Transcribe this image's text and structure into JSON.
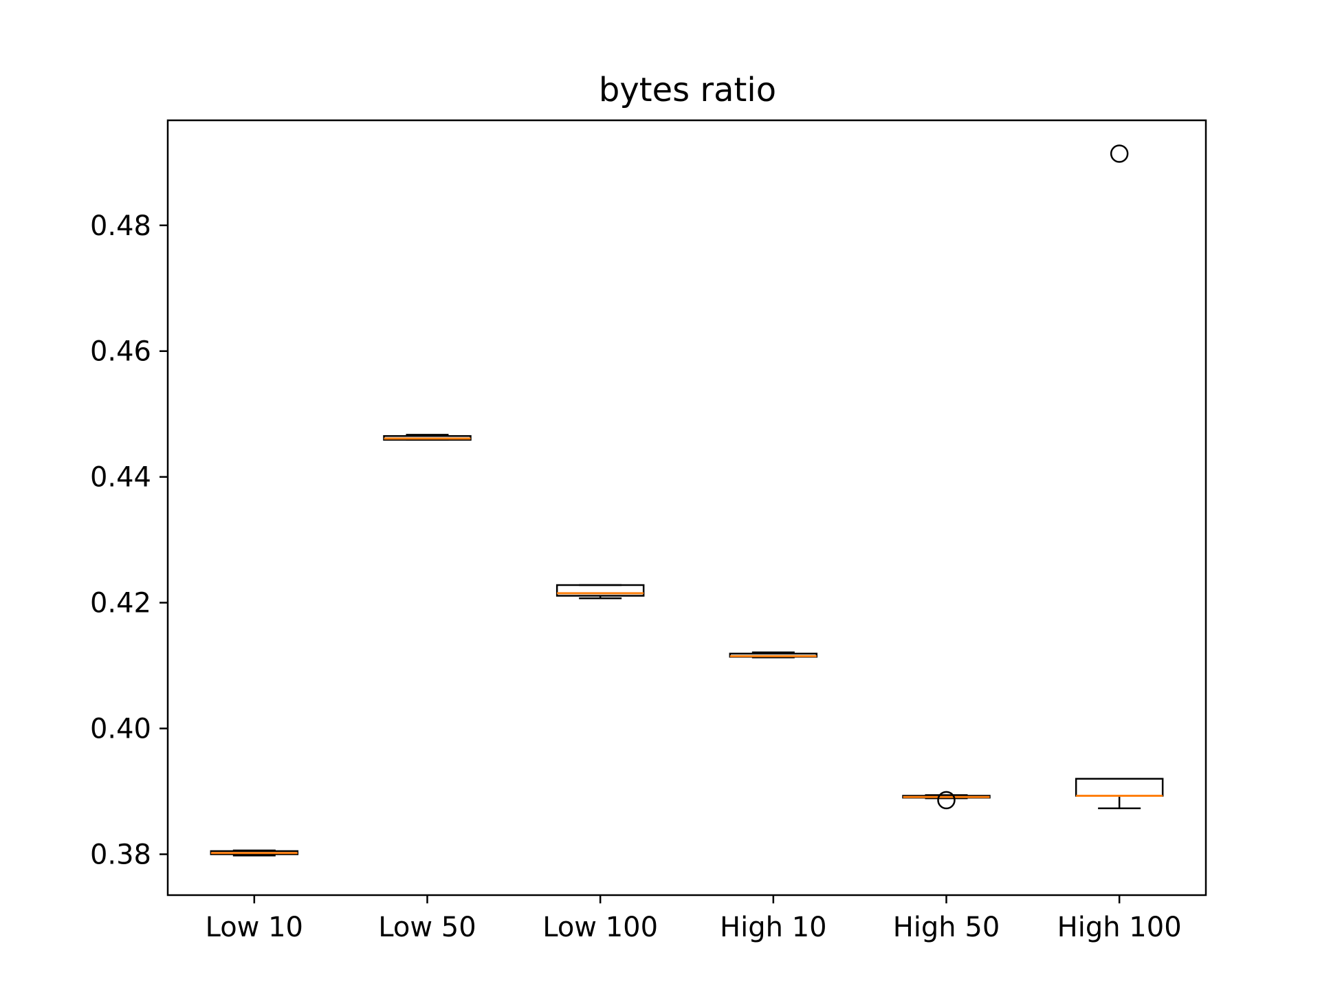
{
  "chart_data": {
    "type": "box",
    "title": "bytes ratio",
    "xlabel": "",
    "ylabel": "",
    "ylim": [
      0.3735,
      0.4967
    ],
    "yticks": [
      0.38,
      0.4,
      0.42,
      0.44,
      0.46,
      0.48
    ],
    "ytick_labels": [
      "0.38",
      "0.40",
      "0.42",
      "0.44",
      "0.46",
      "0.48"
    ],
    "categories": [
      "Low 10",
      "Low 50",
      "Low 100",
      "High 10",
      "High 50",
      "High 100"
    ],
    "boxes": [
      {
        "label": "Low 10",
        "whisker_low": 0.3798,
        "q1": 0.38,
        "median": 0.3802,
        "q3": 0.3805,
        "whisker_high": 0.3806,
        "outliers": []
      },
      {
        "label": "Low 50",
        "whisker_low": 0.4459,
        "q1": 0.4459,
        "median": 0.4461,
        "q3": 0.4465,
        "whisker_high": 0.4467,
        "outliers": []
      },
      {
        "label": "Low 100",
        "whisker_low": 0.4207,
        "q1": 0.4211,
        "median": 0.4215,
        "q3": 0.4228,
        "whisker_high": 0.4228,
        "outliers": []
      },
      {
        "label": "High 10",
        "whisker_low": 0.4113,
        "q1": 0.4114,
        "median": 0.4115,
        "q3": 0.4119,
        "whisker_high": 0.4121,
        "outliers": []
      },
      {
        "label": "High 50",
        "whisker_low": 0.3889,
        "q1": 0.389,
        "median": 0.3891,
        "q3": 0.3893,
        "whisker_high": 0.3894,
        "outliers": [
          0.3886
        ]
      },
      {
        "label": "High 100",
        "whisker_low": 0.3873,
        "q1": 0.3893,
        "median": 0.3893,
        "q3": 0.392,
        "whisker_high": 0.392,
        "outliers": [
          0.4914
        ]
      }
    ],
    "colors": {
      "box": "#000000",
      "median": "#ff7f0e",
      "outlier": "#000000",
      "axes": "#000000"
    },
    "grid": false
  }
}
